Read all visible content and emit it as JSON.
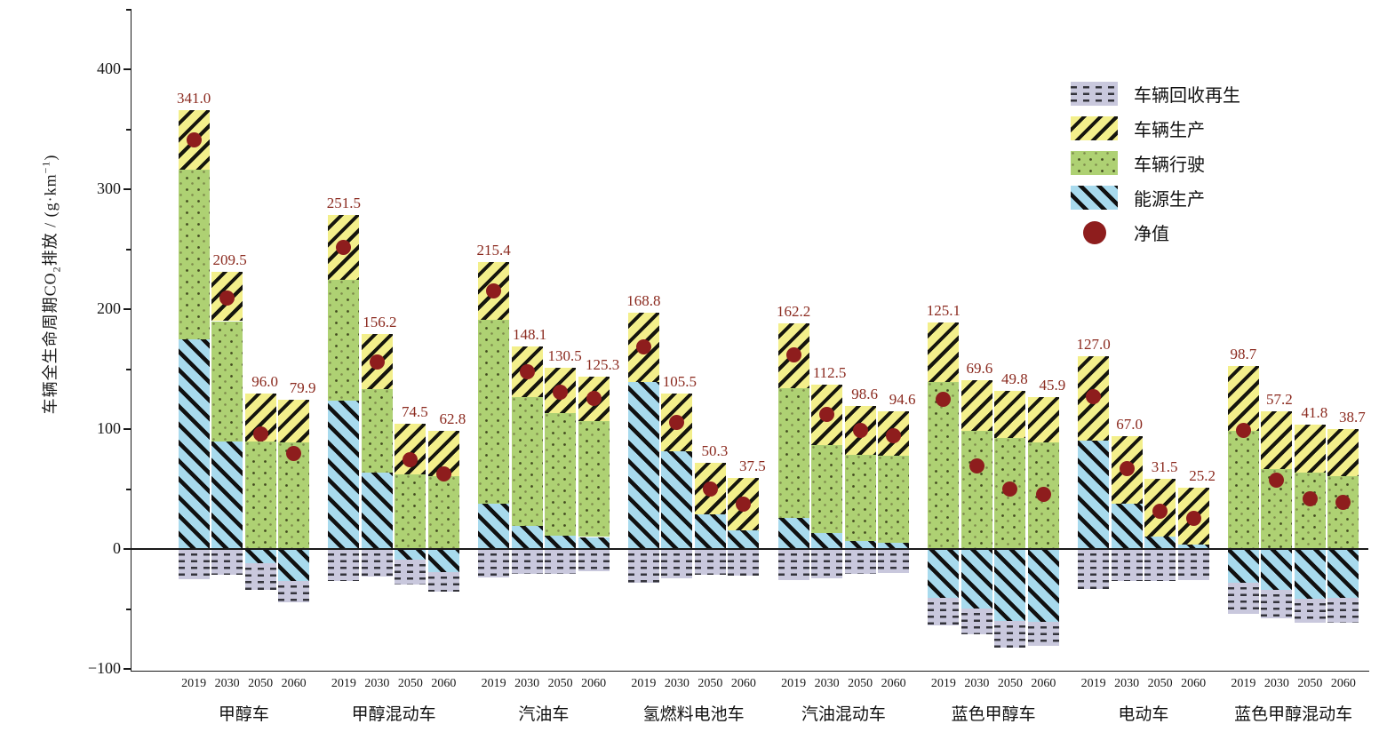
{
  "chart_data": {
    "type": "bar",
    "subtype": "stacked-with-net-points",
    "title": "",
    "ylabel": "车辆全生命周期CO2排放 / (g·km−1)",
    "ylabel_parts": {
      "pre": "车辆全生命周期CO",
      "sub": "2",
      "mid": "排放 / (g·km",
      "sup": "−1",
      "post": ")"
    },
    "ylim": [
      -100,
      455
    ],
    "yticks": [
      400,
      300,
      200,
      100,
      0,
      -100
    ],
    "yticklabels": [
      "400",
      "300",
      "200",
      "100",
      "0",
      "−100"
    ],
    "yticks_minor": [
      450,
      350,
      250,
      150,
      50,
      -50
    ],
    "grid": false,
    "legend_position": "upper-right-inside",
    "years": [
      "2019",
      "2030",
      "2050",
      "2060"
    ],
    "legend": [
      {
        "key": "recycle",
        "label": "车辆回收再生",
        "swatch": "gray-dashed",
        "color": "#c9c8dd"
      },
      {
        "key": "production",
        "label": "车辆生产",
        "swatch": "yellow-diagonal",
        "color": "#f3ef8b"
      },
      {
        "key": "driving",
        "label": "车辆行驶",
        "swatch": "green-dotted",
        "color": "#aed173"
      },
      {
        "key": "energy",
        "label": "能源生产",
        "swatch": "blue-backslash",
        "color": "#a8daed"
      },
      {
        "key": "net",
        "label": "净值",
        "swatch": "dark-red-circle",
        "color": "#8e1d1d"
      }
    ],
    "groups": [
      {
        "label": "甲醇车",
        "bars": [
          {
            "year": "2019",
            "production": 50,
            "driving": 141,
            "energy": 175,
            "recycle": -25,
            "net": 341.0
          },
          {
            "year": "2030",
            "production": 41,
            "driving": 100,
            "energy": 90,
            "recycle": -21.5,
            "net": 209.5
          },
          {
            "year": "2050",
            "production": 40,
            "driving": 90,
            "energy": -12,
            "recycle": -22,
            "net": 96.0
          },
          {
            "year": "2060",
            "production": 36,
            "driving": 88.7,
            "energy": -27,
            "recycle": -17.8,
            "net": 79.9
          }
        ]
      },
      {
        "label": "甲醇混动车",
        "bars": [
          {
            "year": "2019",
            "production": 54,
            "driving": 101,
            "energy": 123.5,
            "recycle": -27,
            "net": 251.5
          },
          {
            "year": "2030",
            "production": 45.5,
            "driving": 70,
            "energy": 63.5,
            "recycle": -22.8,
            "net": 156.2
          },
          {
            "year": "2050",
            "production": 42.5,
            "driving": 62,
            "energy": -9,
            "recycle": -21,
            "net": 74.5
          },
          {
            "year": "2060",
            "production": 37.5,
            "driving": 61,
            "energy": -19,
            "recycle": -16.7,
            "net": 62.8
          }
        ]
      },
      {
        "label": "汽油车",
        "bars": [
          {
            "year": "2019",
            "production": 48,
            "driving": 153,
            "energy": 38,
            "recycle": -23.6,
            "net": 215.4
          },
          {
            "year": "2030",
            "production": 42,
            "driving": 107.5,
            "energy": 19.5,
            "recycle": -20.9,
            "net": 148.1
          },
          {
            "year": "2050",
            "production": 38,
            "driving": 102,
            "energy": 11,
            "recycle": -20.5,
            "net": 130.5
          },
          {
            "year": "2060",
            "production": 37,
            "driving": 97,
            "energy": 10,
            "recycle": -18.7,
            "net": 125.3
          }
        ]
      },
      {
        "label": "氢燃料电池车",
        "bars": [
          {
            "year": "2019",
            "production": 58,
            "driving": 0,
            "energy": 139.3,
            "recycle": -28.5,
            "net": 168.8
          },
          {
            "year": "2030",
            "production": 48.7,
            "driving": 0,
            "energy": 81.2,
            "recycle": -24.4,
            "net": 105.5
          },
          {
            "year": "2050",
            "production": 43,
            "driving": 0,
            "energy": 28.7,
            "recycle": -21.4,
            "net": 50.3
          },
          {
            "year": "2060",
            "production": 43.7,
            "driving": 0,
            "energy": 15.8,
            "recycle": -22,
            "net": 37.5
          }
        ]
      },
      {
        "label": "汽油混动车",
        "bars": [
          {
            "year": "2019",
            "production": 54,
            "driving": 108,
            "energy": 26,
            "recycle": -25.8,
            "net": 162.2
          },
          {
            "year": "2030",
            "production": 50,
            "driving": 74,
            "energy": 13,
            "recycle": -24.5,
            "net": 112.5
          },
          {
            "year": "2050",
            "production": 41,
            "driving": 71.5,
            "energy": 7,
            "recycle": -20.9,
            "net": 98.6
          },
          {
            "year": "2060",
            "production": 37,
            "driving": 72.5,
            "energy": 5,
            "recycle": -19.9,
            "net": 94.6
          }
        ]
      },
      {
        "label": "蓝色甲醇车",
        "bars": [
          {
            "year": "2019",
            "production": 49.4,
            "driving": 139.3,
            "energy": -41,
            "recycle": -22.6,
            "net": 125.1
          },
          {
            "year": "2030",
            "production": 42,
            "driving": 98.5,
            "energy": -49.6,
            "recycle": -21.3,
            "net": 69.6
          },
          {
            "year": "2050",
            "production": 39.5,
            "driving": 92.4,
            "energy": -60.2,
            "recycle": -21.9,
            "net": 49.8
          },
          {
            "year": "2060",
            "production": 37.8,
            "driving": 88.6,
            "energy": -60.7,
            "recycle": -19.8,
            "net": 45.9
          }
        ]
      },
      {
        "label": "电动车",
        "bars": [
          {
            "year": "2019",
            "production": 70.3,
            "driving": 0,
            "energy": 90.4,
            "recycle": -33.7,
            "net": 127.0
          },
          {
            "year": "2030",
            "production": 56,
            "driving": 0,
            "energy": 38,
            "recycle": -27,
            "net": 67.0
          },
          {
            "year": "2050",
            "production": 48,
            "driving": 0,
            "energy": 10.4,
            "recycle": -26.9,
            "net": 31.5
          },
          {
            "year": "2060",
            "production": 47,
            "driving": 0,
            "energy": 4,
            "recycle": -25.8,
            "net": 25.2
          }
        ]
      },
      {
        "label": "蓝色甲醇混动车",
        "bars": [
          {
            "year": "2019",
            "production": 54.3,
            "driving": 98.5,
            "energy": -28,
            "recycle": -26.1,
            "net": 98.7
          },
          {
            "year": "2030",
            "production": 48.6,
            "driving": 66.4,
            "energy": -34,
            "recycle": -23.8,
            "net": 57.2
          },
          {
            "year": "2050",
            "production": 40,
            "driving": 63.5,
            "energy": -41.7,
            "recycle": -20,
            "net": 41.8
          },
          {
            "year": "2060",
            "production": 39.2,
            "driving": 61,
            "energy": -41,
            "recycle": -20.5,
            "net": 38.7
          }
        ]
      }
    ]
  }
}
